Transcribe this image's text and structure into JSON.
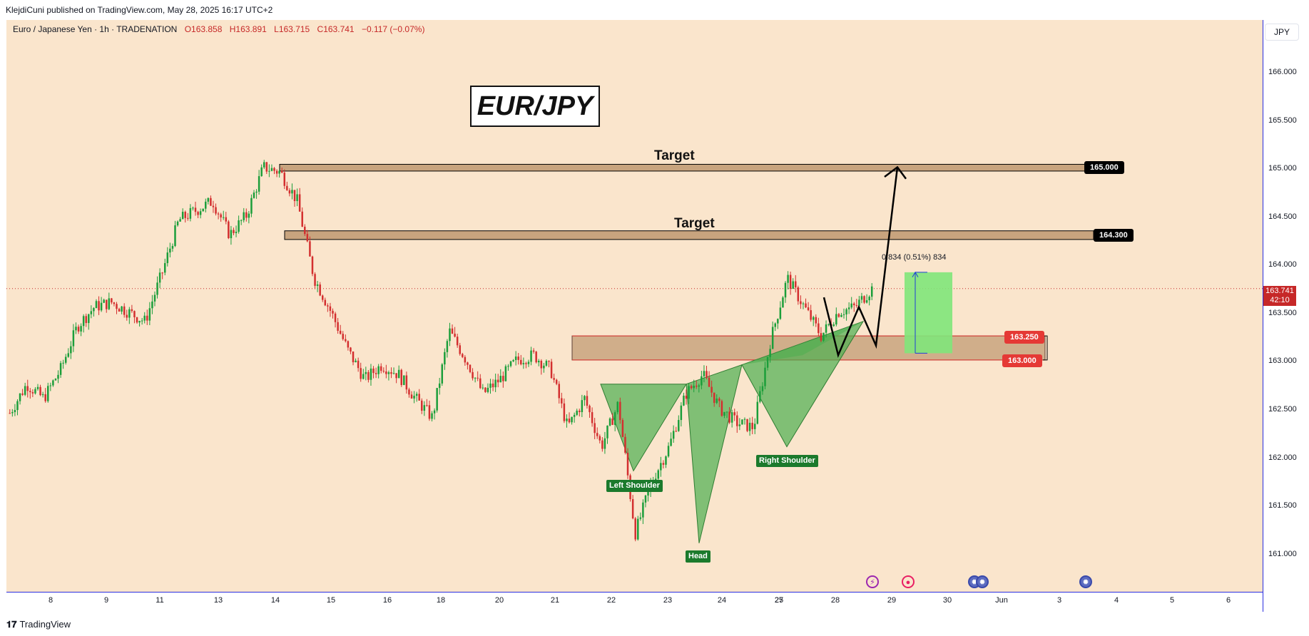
{
  "header": {
    "publisher": "KlejdiCuni published on TradingView.com, May 28, 2025 16:17 UTC+2",
    "symbol": "Euro / Japanese Yen · 1h · TRADENATION",
    "open": "O163.858",
    "high": "H163.891",
    "low": "L163.715",
    "close": "C163.741",
    "change": "−0.117 (−0.07%)"
  },
  "currency_button": "JPY",
  "last_price": "163.741",
  "countdown": "42:10",
  "brand": "TradingView",
  "colors": {
    "background": "#fae5cc",
    "up": "#1b9e3a",
    "down": "#d32f2f",
    "zone": "#c8a47e",
    "pattern": "#4caf50"
  },
  "annotations": {
    "title": "EUR/JPY",
    "target_1": "Target",
    "target_2": "Target",
    "left_shoulder": "Left Shoulder",
    "head": "Head",
    "right_shoulder": "Right Shoulder",
    "measure": "0.834 (0.51%) 834"
  },
  "price_labels": {
    "p165000": "165.000",
    "p164300": "164.300",
    "p163250": "163.250",
    "p163000": "163.000"
  },
  "chart_data": {
    "type": "candlestick",
    "symbol": "EUR/JPY",
    "timeframe": "1h",
    "ylim": [
      160.6,
      166.3
    ],
    "y_ticks": [
      "166.000",
      "165.500",
      "165.000",
      "164.500",
      "164.000",
      "163.500",
      "163.000",
      "162.500",
      "162.000",
      "161.500",
      "161.000"
    ],
    "x_ticks": [
      "8",
      "9",
      "11",
      "13",
      "14",
      "15",
      "16",
      "18",
      "20",
      "21",
      "22",
      "23",
      "24",
      "25",
      "27",
      "28",
      "29",
      "30",
      "Jun",
      "3",
      "4",
      "5",
      "6"
    ],
    "levels": [
      {
        "price": 165.0,
        "label": "Target"
      },
      {
        "price": 164.3,
        "label": "Target"
      },
      {
        "price": 163.25
      },
      {
        "price": 163.0
      }
    ],
    "pattern": "inverse head and shoulders",
    "pattern_points": [
      {
        "label": "Left Shoulder",
        "price": 161.85
      },
      {
        "label": "Head",
        "price": 161.1
      },
      {
        "label": "Right Shoulder",
        "price": 162.1
      }
    ],
    "close_path": [
      162.45,
      162.75,
      162.6,
      162.9,
      163.35,
      163.55,
      163.6,
      163.5,
      163.4,
      163.9,
      164.45,
      164.55,
      164.65,
      164.3,
      164.5,
      165.0,
      164.95,
      164.65,
      163.85,
      163.5,
      163.1,
      162.8,
      162.95,
      162.85,
      162.6,
      162.4,
      163.3,
      163.0,
      162.65,
      162.8,
      163.0,
      163.05,
      162.9,
      162.3,
      162.6,
      162.1,
      162.55,
      161.2,
      161.75,
      162.1,
      162.65,
      162.85,
      162.5,
      162.35,
      162.3,
      163.2,
      163.85,
      163.55,
      163.25,
      163.5,
      163.55,
      163.74
    ]
  }
}
